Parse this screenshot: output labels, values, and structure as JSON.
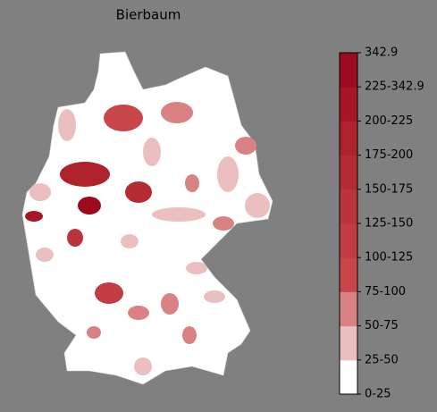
{
  "title": "Bierbaum",
  "colorbar": {
    "labels": [
      "0-25",
      "25-50",
      "50-75",
      "75-100",
      "100-125",
      "125-150",
      "150-175",
      "175-200",
      "200-225",
      "225-342.9",
      "342.9"
    ],
    "colors": [
      "#ffffff",
      "#ebbfbf",
      "#d98283",
      "#c8454a",
      "#c23d43",
      "#bb343b",
      "#b52b34",
      "#ae222c",
      "#a61725",
      "#9c0a1e"
    ]
  }
}
